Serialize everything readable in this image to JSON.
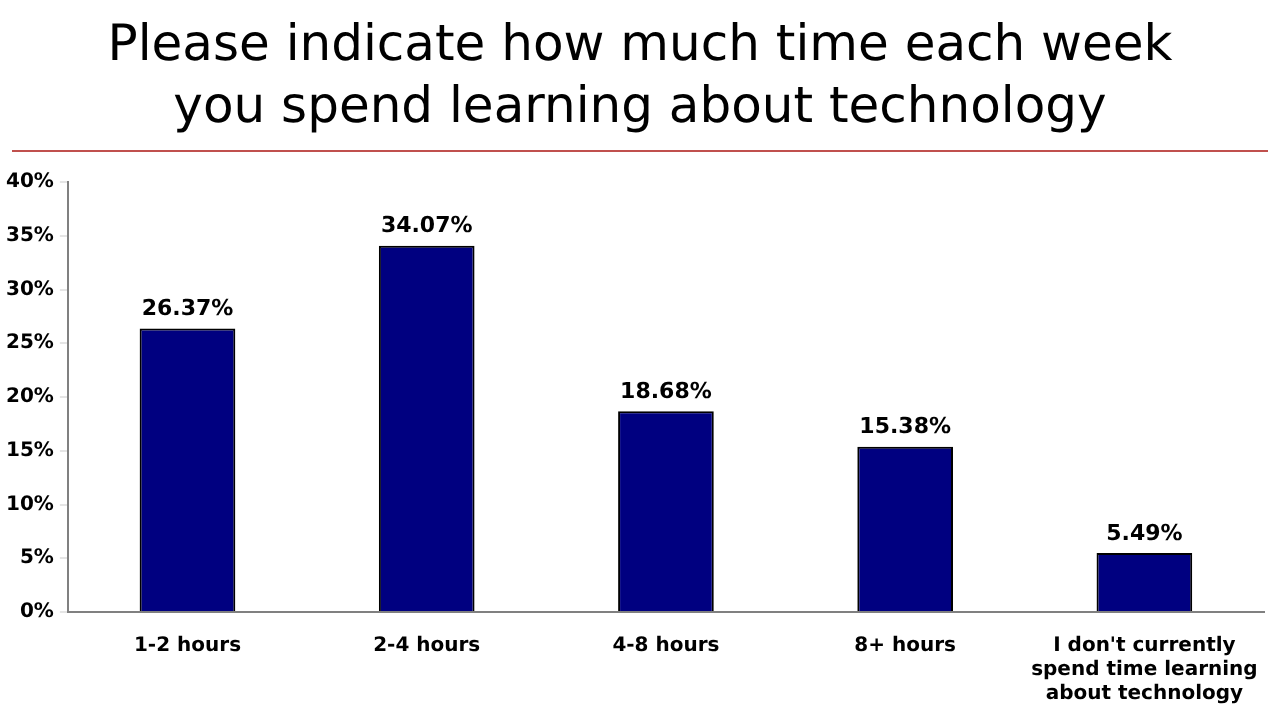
{
  "chart_data": {
    "type": "bar",
    "title": "Please indicate how much time each week you spend learning about technology",
    "categories": [
      "1-2 hours",
      "2-4 hours",
      "4-8 hours",
      "8+ hours",
      "I don't currently spend time learning about technology"
    ],
    "values": [
      26.37,
      34.07,
      18.68,
      15.38,
      5.49
    ],
    "value_labels": [
      "26.37%",
      "34.07%",
      "18.68%",
      "15.38%",
      "5.49%"
    ],
    "color": "#000080",
    "ylim": [
      0,
      40
    ],
    "yticks": [
      {
        "value": 0,
        "label": "0%"
      },
      {
        "value": 5,
        "label": "5%"
      },
      {
        "value": 10,
        "label": "10%"
      },
      {
        "value": 15,
        "label": "15%"
      },
      {
        "value": 20,
        "label": "20%"
      },
      {
        "value": 25,
        "label": "25%"
      },
      {
        "value": 30,
        "label": "30%"
      },
      {
        "value": 35,
        "label": "35%"
      },
      {
        "value": 40,
        "label": "40%"
      }
    ],
    "grid": false,
    "legend": false
  }
}
